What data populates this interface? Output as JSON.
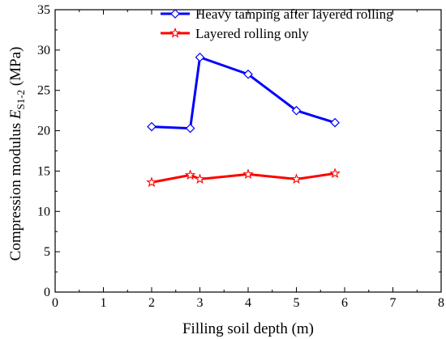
{
  "chart_data": {
    "type": "line",
    "xlabel": "Filling soil depth (m)",
    "ylabel": {
      "prefix": "Compression modulus ",
      "symbol": "E",
      "subscript": "S1-2",
      "suffix": " (MPa)"
    },
    "xlim": [
      0,
      8
    ],
    "ylim": [
      0,
      35
    ],
    "x_ticks": [
      "0",
      "1",
      "2",
      "3",
      "4",
      "5",
      "6",
      "7",
      "8"
    ],
    "y_ticks": [
      "0",
      "5",
      "10",
      "15",
      "20",
      "25",
      "30",
      "35"
    ],
    "grid": false,
    "legend_position": "top-right",
    "series": [
      {
        "name": "Heavy tamping after layered rolling",
        "color": "#0000ff",
        "marker": "diamond",
        "x": [
          2.0,
          2.8,
          3.0,
          4.0,
          5.0,
          5.8
        ],
        "y": [
          20.5,
          20.3,
          29.1,
          27.0,
          22.5,
          21.0
        ]
      },
      {
        "name": "Layered rolling only",
        "color": "#ff0000",
        "marker": "star",
        "x": [
          2.0,
          2.8,
          3.0,
          4.0,
          5.0,
          5.8
        ],
        "y": [
          13.6,
          14.5,
          14.0,
          14.6,
          14.0,
          14.7
        ]
      }
    ]
  }
}
